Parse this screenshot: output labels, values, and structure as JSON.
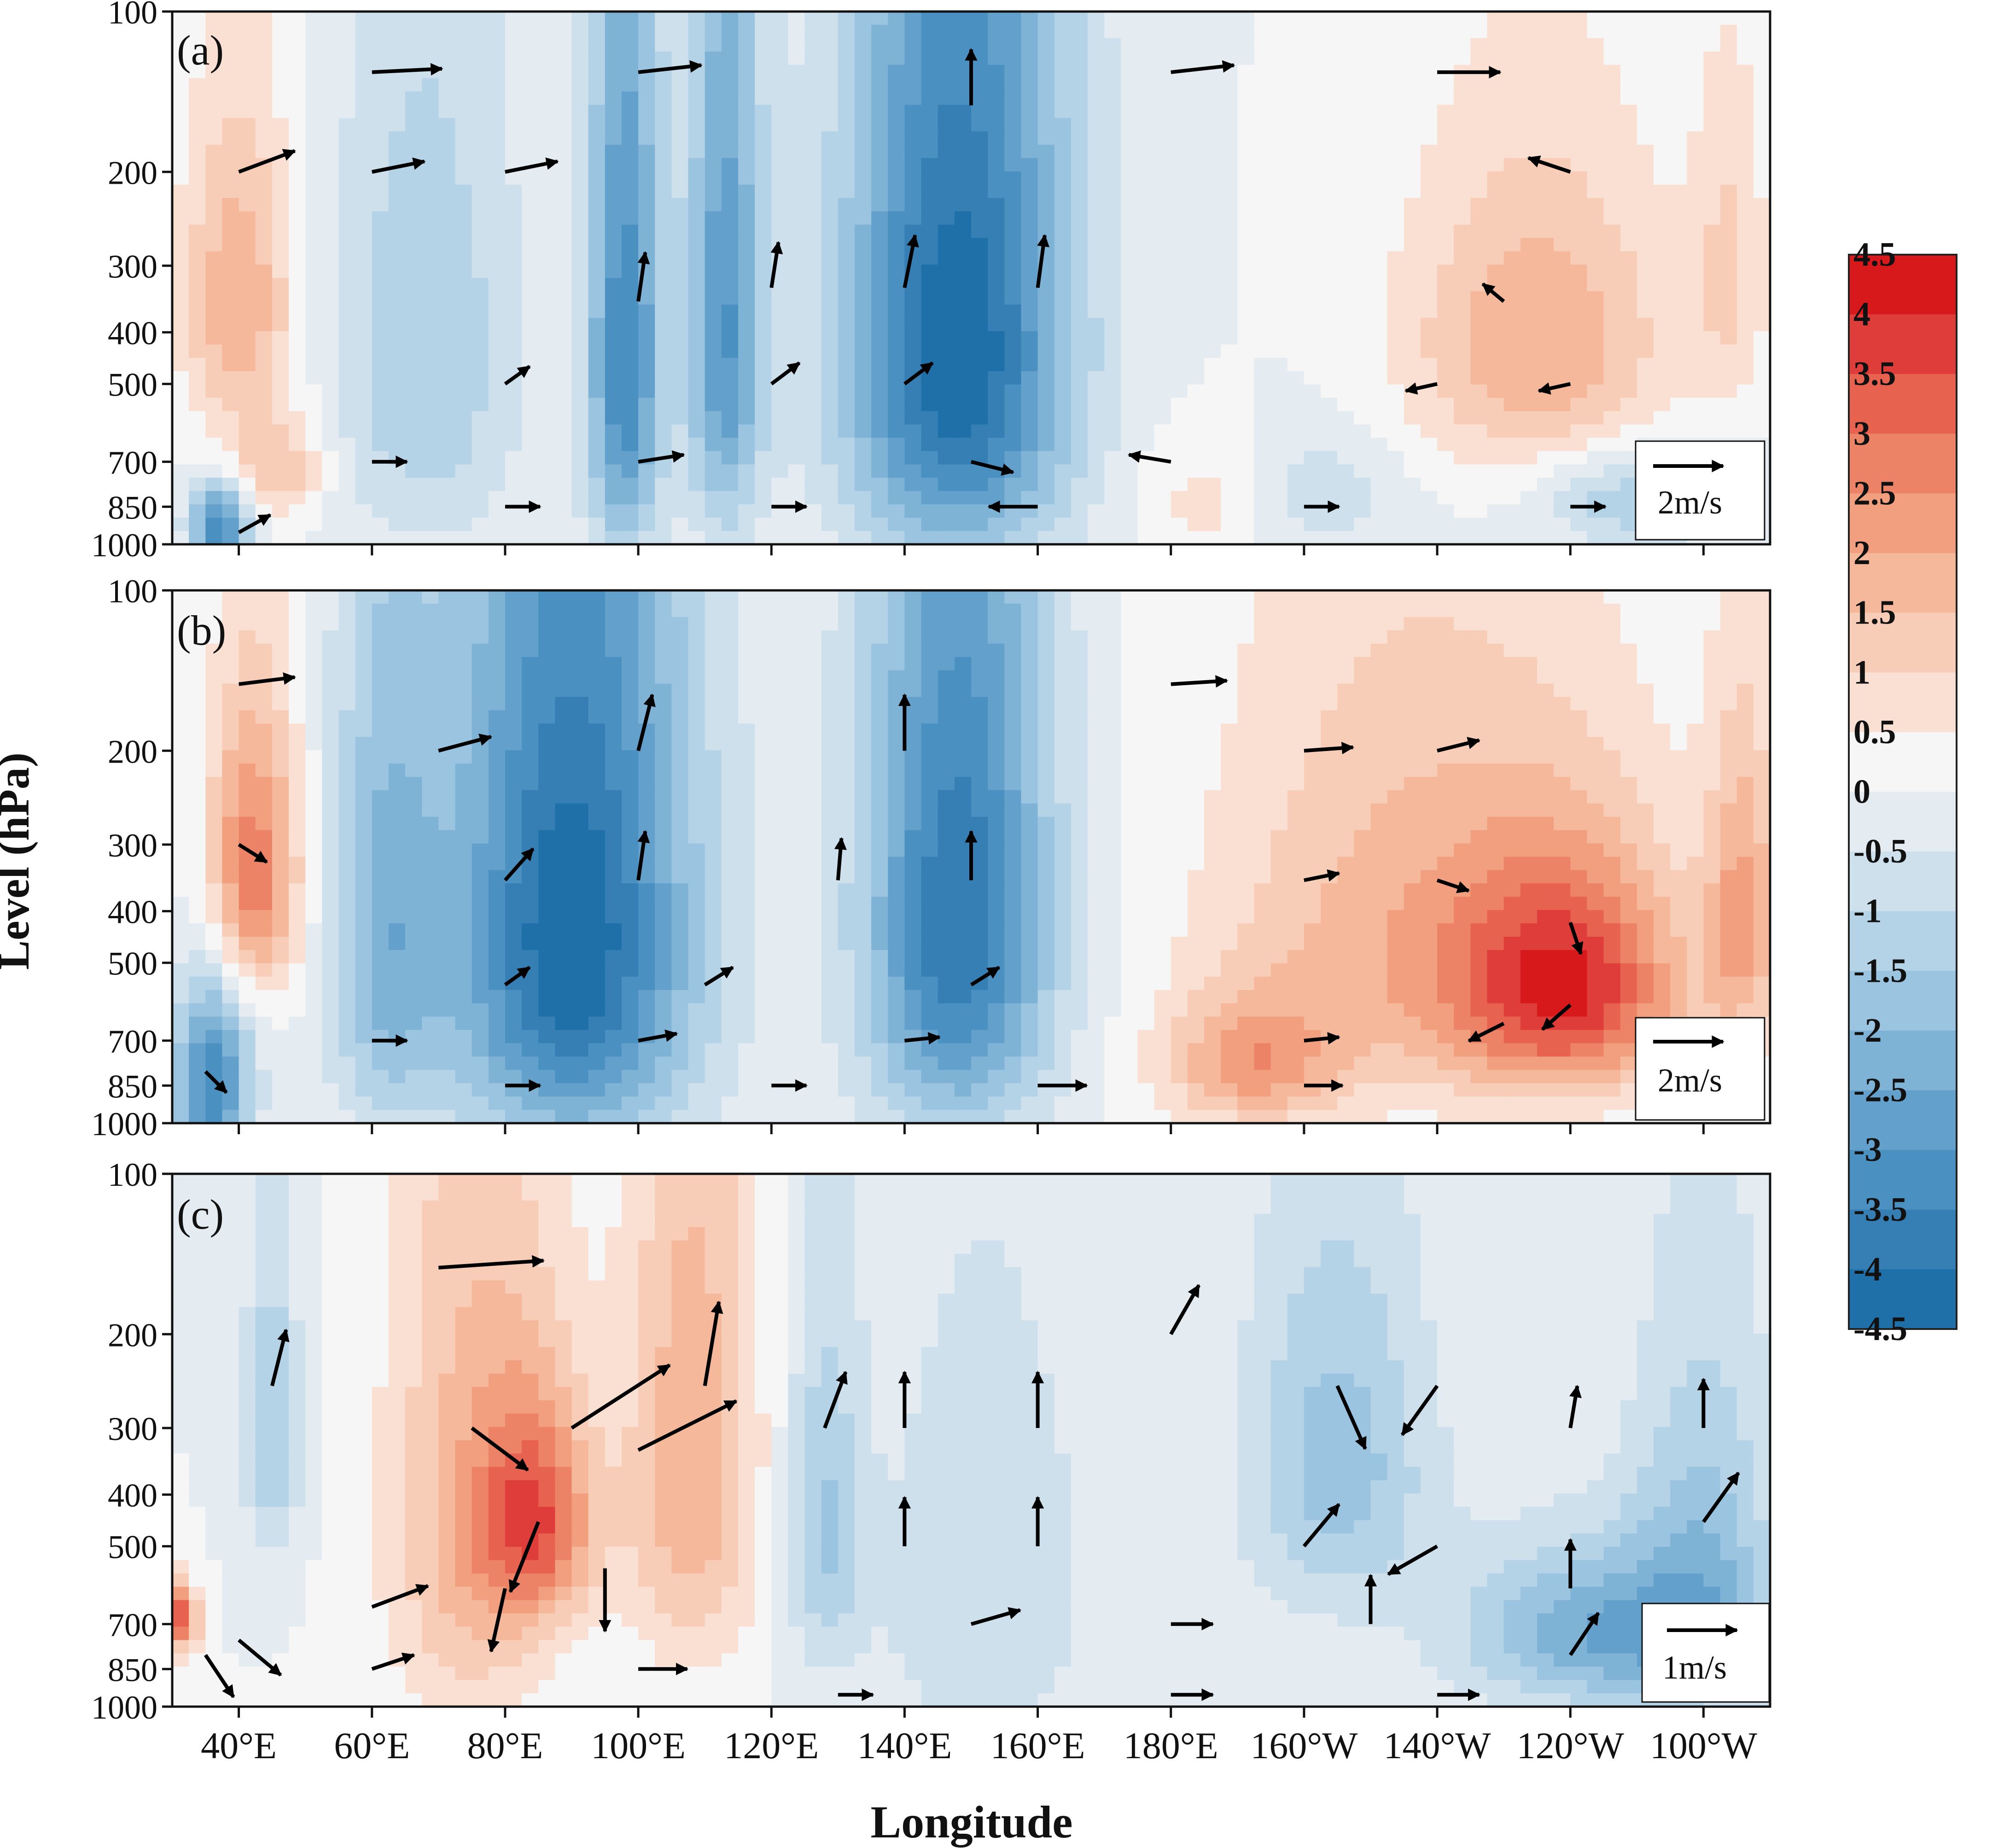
{
  "figure": {
    "ylabel": "Level (hPa)",
    "xlabel": "Longitude"
  },
  "colorbar": {
    "tick_labels": [
      "4.5",
      "4",
      "3.5",
      "3",
      "2.5",
      "2",
      "1.5",
      "1",
      "0.5",
      "0",
      "-0.5",
      "-1",
      "-1.5",
      "-2",
      "-2.5",
      "-3",
      "-3.5",
      "-4",
      "-4.5"
    ],
    "levels": [
      4.5,
      4,
      3.5,
      3,
      2.5,
      2,
      1.5,
      1,
      0.5,
      0,
      -0.5,
      -1,
      -1.5,
      -2,
      -2.5,
      -3,
      -3.5,
      -4,
      -4.5
    ],
    "colors": [
      "#d7191c",
      "#df3d3a",
      "#e76350",
      "#ec8366",
      "#f19f7e",
      "#f5b89a",
      "#f8cdb7",
      "#fae0d2",
      "#f6f6f6",
      "#e4ecf1",
      "#cde0ec",
      "#b5d3e6",
      "#9ac4df",
      "#7fb3d6",
      "#63a1cc",
      "#4a90c1",
      "#357fb5",
      "#1f6fa9"
    ],
    "cmap_neg_extreme": "#0f69a8",
    "cmap_pos_extreme": "#d61f2a"
  },
  "chart_data": [
    {
      "type": "heatmap",
      "panel_label": "(a)",
      "x_ticks": [
        "40°E",
        "60°E",
        "80°E",
        "100°E",
        "120°E",
        "140°E",
        "160°E",
        "180°E",
        "160°W",
        "140°W",
        "120°W",
        "100°W"
      ],
      "x_tick_values": [
        40,
        60,
        80,
        100,
        120,
        140,
        160,
        180,
        200,
        220,
        240,
        260
      ],
      "xlim": [
        30,
        270
      ],
      "y_ticks": [
        "100",
        "200",
        "300",
        "400",
        "500",
        "700",
        "850",
        "1000"
      ],
      "y_tick_values": [
        100,
        200,
        300,
        400,
        500,
        700,
        850,
        1000
      ],
      "ylim": [
        1000,
        100
      ],
      "vector_scale_label": "2m/s",
      "vector_scale_value": 2,
      "anomaly_centers": [
        {
          "lon": 40,
          "p": 350,
          "value": 2.0,
          "dlon": 6,
          "dp": 170
        },
        {
          "lon": 46,
          "p": 720,
          "value": 1.5,
          "dlon": 5,
          "dp": 110
        },
        {
          "lon": 37,
          "p": 920,
          "value": -3.5,
          "dlon": 3,
          "dp": 110
        },
        {
          "lon": 68,
          "p": 450,
          "value": -1.5,
          "dlon": 10,
          "dp": 350
        },
        {
          "lon": 98,
          "p": 450,
          "value": -3.5,
          "dlon": 4,
          "dp": 380
        },
        {
          "lon": 113,
          "p": 400,
          "value": -3.0,
          "dlon": 4,
          "dp": 350
        },
        {
          "lon": 148,
          "p": 430,
          "value": -4.5,
          "dlon": 12,
          "dp": 400
        },
        {
          "lon": 200,
          "p": 800,
          "value": -1.0,
          "dlon": 10,
          "dp": 150
        },
        {
          "lon": 235,
          "p": 420,
          "value": 2.0,
          "dlon": 14,
          "dp": 200
        },
        {
          "lon": 187,
          "p": 820,
          "value": 1.0,
          "dlon": 8,
          "dp": 150
        },
        {
          "lon": 264,
          "p": 300,
          "value": 1.0,
          "dlon": 4,
          "dp": 150
        },
        {
          "lon": 250,
          "p": 820,
          "value": -1.5,
          "dlon": 10,
          "dp": 120
        }
      ],
      "vectors": [
        {
          "lon": 40,
          "p": 200,
          "u": 1.6,
          "v": -0.6
        },
        {
          "lon": 60,
          "p": 200,
          "u": 1.5,
          "v": -0.3
        },
        {
          "lon": 80,
          "p": 200,
          "u": 1.5,
          "v": -0.3
        },
        {
          "lon": 60,
          "p": 130,
          "u": 2.0,
          "v": -0.1
        },
        {
          "lon": 100,
          "p": 130,
          "u": 1.8,
          "v": -0.2
        },
        {
          "lon": 150,
          "p": 150,
          "u": 0.0,
          "v": -1.6
        },
        {
          "lon": 180,
          "p": 130,
          "u": 1.8,
          "v": -0.2
        },
        {
          "lon": 220,
          "p": 130,
          "u": 1.8,
          "v": 0.0
        },
        {
          "lon": 240,
          "p": 200,
          "u": -1.2,
          "v": -0.4
        },
        {
          "lon": 100,
          "p": 350,
          "u": 0.2,
          "v": -1.4
        },
        {
          "lon": 120,
          "p": 330,
          "u": 0.2,
          "v": -1.3
        },
        {
          "lon": 140,
          "p": 330,
          "u": 0.3,
          "v": -1.5
        },
        {
          "lon": 160,
          "p": 330,
          "u": 0.2,
          "v": -1.5
        },
        {
          "lon": 80,
          "p": 500,
          "u": 0.7,
          "v": -0.5
        },
        {
          "lon": 120,
          "p": 500,
          "u": 0.8,
          "v": -0.6
        },
        {
          "lon": 140,
          "p": 500,
          "u": 0.8,
          "v": -0.6
        },
        {
          "lon": 60,
          "p": 700,
          "u": 1.0,
          "v": 0.0
        },
        {
          "lon": 100,
          "p": 700,
          "u": 1.3,
          "v": -0.2
        },
        {
          "lon": 150,
          "p": 700,
          "u": 1.2,
          "v": 0.3
        },
        {
          "lon": 180,
          "p": 700,
          "u": -1.2,
          "v": -0.2
        },
        {
          "lon": 220,
          "p": 500,
          "u": -0.9,
          "v": 0.2
        },
        {
          "lon": 240,
          "p": 500,
          "u": -0.9,
          "v": 0.2
        },
        {
          "lon": 230,
          "p": 350,
          "u": -0.6,
          "v": -0.5
        },
        {
          "lon": 80,
          "p": 850,
          "u": 1.0,
          "v": 0.0
        },
        {
          "lon": 120,
          "p": 850,
          "u": 1.0,
          "v": 0.0
        },
        {
          "lon": 160,
          "p": 850,
          "u": -1.4,
          "v": 0.0
        },
        {
          "lon": 200,
          "p": 850,
          "u": 1.0,
          "v": 0.0
        },
        {
          "lon": 240,
          "p": 850,
          "u": 1.0,
          "v": 0.0
        },
        {
          "lon": 40,
          "p": 950,
          "u": 0.9,
          "v": -0.5
        },
        {
          "lon": 260,
          "p": 700,
          "u": 0.7,
          "v": -0.4
        }
      ]
    },
    {
      "type": "heatmap",
      "panel_label": "(b)",
      "x_ticks": [
        "40°E",
        "60°E",
        "80°E",
        "100°E",
        "120°E",
        "140°E",
        "160°E",
        "180°E",
        "160°W",
        "140°W",
        "120°W",
        "100°W"
      ],
      "x_tick_values": [
        40,
        60,
        80,
        100,
        120,
        140,
        160,
        180,
        200,
        220,
        240,
        260
      ],
      "xlim": [
        30,
        270
      ],
      "y_ticks": [
        "100",
        "200",
        "300",
        "400",
        "500",
        "700",
        "850",
        "1000"
      ],
      "y_tick_values": [
        100,
        200,
        300,
        400,
        500,
        700,
        850,
        1000
      ],
      "ylim": [
        1000,
        100
      ],
      "vector_scale_label": "2m/s",
      "vector_scale_value": 2,
      "anomaly_centers": [
        {
          "lon": 42,
          "p": 340,
          "value": 3.0,
          "dlon": 5,
          "dp": 150
        },
        {
          "lon": 36,
          "p": 850,
          "value": -3.5,
          "dlon": 4,
          "dp": 250
        },
        {
          "lon": 62,
          "p": 450,
          "value": -2.0,
          "dlon": 6,
          "dp": 350
        },
        {
          "lon": 90,
          "p": 450,
          "value": -4.5,
          "dlon": 13,
          "dp": 420
        },
        {
          "lon": 148,
          "p": 420,
          "value": -4.0,
          "dlon": 10,
          "dp": 380
        },
        {
          "lon": 240,
          "p": 560,
          "value": 3.5,
          "dlon": 12,
          "dp": 200
        },
        {
          "lon": 215,
          "p": 450,
          "value": 1.8,
          "dlon": 20,
          "dp": 300
        },
        {
          "lon": 192,
          "p": 780,
          "value": 2.0,
          "dlon": 9,
          "dp": 150
        },
        {
          "lon": 266,
          "p": 400,
          "value": 2.0,
          "dlon": 4,
          "dp": 200
        }
      ],
      "vectors": [
        {
          "lon": 40,
          "p": 150,
          "u": 1.6,
          "v": -0.2
        },
        {
          "lon": 70,
          "p": 200,
          "u": 1.5,
          "v": -0.4
        },
        {
          "lon": 100,
          "p": 200,
          "u": 0.4,
          "v": -1.6
        },
        {
          "lon": 140,
          "p": 200,
          "u": 0.0,
          "v": -1.6
        },
        {
          "lon": 180,
          "p": 150,
          "u": 1.6,
          "v": -0.1
        },
        {
          "lon": 200,
          "p": 200,
          "u": 1.4,
          "v": -0.1
        },
        {
          "lon": 220,
          "p": 200,
          "u": 1.2,
          "v": -0.3
        },
        {
          "lon": 80,
          "p": 350,
          "u": 0.8,
          "v": -0.9
        },
        {
          "lon": 100,
          "p": 350,
          "u": 0.2,
          "v": -1.4
        },
        {
          "lon": 130,
          "p": 350,
          "u": 0.1,
          "v": -1.2
        },
        {
          "lon": 150,
          "p": 350,
          "u": 0.0,
          "v": -1.4
        },
        {
          "lon": 200,
          "p": 350,
          "u": 1.0,
          "v": -0.2
        },
        {
          "lon": 220,
          "p": 350,
          "u": 0.9,
          "v": 0.3
        },
        {
          "lon": 240,
          "p": 420,
          "u": 0.3,
          "v": 0.9
        },
        {
          "lon": 240,
          "p": 600,
          "u": -0.8,
          "v": 0.7
        },
        {
          "lon": 230,
          "p": 650,
          "u": -1.0,
          "v": 0.5
        },
        {
          "lon": 80,
          "p": 550,
          "u": 0.7,
          "v": -0.5
        },
        {
          "lon": 110,
          "p": 550,
          "u": 0.8,
          "v": -0.5
        },
        {
          "lon": 150,
          "p": 550,
          "u": 0.8,
          "v": -0.5
        },
        {
          "lon": 60,
          "p": 700,
          "u": 1.0,
          "v": 0.0
        },
        {
          "lon": 100,
          "p": 700,
          "u": 1.1,
          "v": -0.2
        },
        {
          "lon": 140,
          "p": 700,
          "u": 1.0,
          "v": -0.1
        },
        {
          "lon": 200,
          "p": 700,
          "u": 1.0,
          "v": -0.1
        },
        {
          "lon": 80,
          "p": 850,
          "u": 1.0,
          "v": 0.0
        },
        {
          "lon": 120,
          "p": 850,
          "u": 1.0,
          "v": 0.0
        },
        {
          "lon": 160,
          "p": 850,
          "u": 1.4,
          "v": 0.0
        },
        {
          "lon": 200,
          "p": 850,
          "u": 1.1,
          "v": 0.0
        },
        {
          "lon": 40,
          "p": 300,
          "u": 0.8,
          "v": 0.5
        },
        {
          "lon": 35,
          "p": 800,
          "u": 0.6,
          "v": 0.6
        },
        {
          "lon": 255,
          "p": 850,
          "u": -0.4,
          "v": 0.5
        }
      ]
    },
    {
      "type": "heatmap",
      "panel_label": "(c)",
      "x_ticks": [
        "40°E",
        "60°E",
        "80°E",
        "100°E",
        "120°E",
        "140°E",
        "160°E",
        "180°E",
        "160°W",
        "140°W",
        "120°W",
        "100°W"
      ],
      "x_tick_values": [
        40,
        60,
        80,
        100,
        120,
        140,
        160,
        180,
        200,
        220,
        240,
        260
      ],
      "xlim": [
        30,
        270
      ],
      "y_ticks": [
        "100",
        "200",
        "300",
        "400",
        "500",
        "700",
        "850",
        "1000"
      ],
      "y_tick_values": [
        100,
        200,
        300,
        400,
        500,
        700,
        850,
        1000
      ],
      "ylim": [
        1000,
        100
      ],
      "vector_scale_label": "1m/s",
      "vector_scale_value": 1,
      "anomaly_centers": [
        {
          "lon": 31,
          "p": 680,
          "value": 3.5,
          "dlon": 2,
          "dp": 70
        },
        {
          "lon": 45,
          "p": 300,
          "value": -1.5,
          "dlon": 3,
          "dp": 150
        },
        {
          "lon": 75,
          "p": 450,
          "value": 1.8,
          "dlon": 9,
          "dp": 400
        },
        {
          "lon": 85,
          "p": 450,
          "value": 2.8,
          "dlon": 6,
          "dp": 150
        },
        {
          "lon": 108,
          "p": 350,
          "value": 2.0,
          "dlon": 7,
          "dp": 300
        },
        {
          "lon": 128,
          "p": 450,
          "value": -1.5,
          "dlon": 4,
          "dp": 250
        },
        {
          "lon": 152,
          "p": 600,
          "value": -1.0,
          "dlon": 12,
          "dp": 400
        },
        {
          "lon": 205,
          "p": 350,
          "value": -1.8,
          "dlon": 10,
          "dp": 200
        },
        {
          "lon": 245,
          "p": 730,
          "value": -2.5,
          "dlon": 15,
          "dp": 180
        },
        {
          "lon": 260,
          "p": 500,
          "value": -1.5,
          "dlon": 8,
          "dp": 300
        }
      ],
      "vectors": [
        {
          "lon": 70,
          "p": 150,
          "u": 1.5,
          "v": -0.1
        },
        {
          "lon": 90,
          "p": 300,
          "u": 1.4,
          "v": -0.9
        },
        {
          "lon": 100,
          "p": 330,
          "u": 1.4,
          "v": -0.7
        },
        {
          "lon": 75,
          "p": 300,
          "u": 0.8,
          "v": 0.6
        },
        {
          "lon": 110,
          "p": 250,
          "u": 0.2,
          "v": -1.2
        },
        {
          "lon": 85,
          "p": 450,
          "u": -0.4,
          "v": 1.0
        },
        {
          "lon": 95,
          "p": 550,
          "u": 0.0,
          "v": 0.9
        },
        {
          "lon": 80,
          "p": 600,
          "u": -0.2,
          "v": 0.9
        },
        {
          "lon": 60,
          "p": 650,
          "u": 0.8,
          "v": -0.3
        },
        {
          "lon": 45,
          "p": 250,
          "u": 0.2,
          "v": -0.8
        },
        {
          "lon": 128,
          "p": 300,
          "u": 0.3,
          "v": -0.8
        },
        {
          "lon": 140,
          "p": 300,
          "u": 0.0,
          "v": -0.8
        },
        {
          "lon": 160,
          "p": 300,
          "u": 0.0,
          "v": -0.8
        },
        {
          "lon": 180,
          "p": 200,
          "u": 0.4,
          "v": -0.7
        },
        {
          "lon": 205,
          "p": 250,
          "u": 0.4,
          "v": 0.9
        },
        {
          "lon": 220,
          "p": 250,
          "u": -0.5,
          "v": 0.7
        },
        {
          "lon": 240,
          "p": 300,
          "u": 0.1,
          "v": -0.6
        },
        {
          "lon": 260,
          "p": 300,
          "u": 0.0,
          "v": -0.7
        },
        {
          "lon": 140,
          "p": 500,
          "u": 0.0,
          "v": -0.7
        },
        {
          "lon": 160,
          "p": 500,
          "u": 0.0,
          "v": -0.7
        },
        {
          "lon": 200,
          "p": 500,
          "u": 0.5,
          "v": -0.6
        },
        {
          "lon": 220,
          "p": 500,
          "u": -0.7,
          "v": 0.4
        },
        {
          "lon": 240,
          "p": 600,
          "u": 0.0,
          "v": -0.7
        },
        {
          "lon": 260,
          "p": 450,
          "u": 0.5,
          "v": -0.7
        },
        {
          "lon": 150,
          "p": 700,
          "u": 0.7,
          "v": -0.2
        },
        {
          "lon": 180,
          "p": 700,
          "u": 0.6,
          "v": 0.0
        },
        {
          "lon": 210,
          "p": 700,
          "u": 0.0,
          "v": -0.7
        },
        {
          "lon": 240,
          "p": 800,
          "u": 0.4,
          "v": -0.6
        },
        {
          "lon": 60,
          "p": 850,
          "u": 0.6,
          "v": -0.2
        },
        {
          "lon": 100,
          "p": 850,
          "u": 0.7,
          "v": 0.0
        },
        {
          "lon": 130,
          "p": 950,
          "u": 0.5,
          "v": 0.0
        },
        {
          "lon": 180,
          "p": 950,
          "u": 0.6,
          "v": 0.0
        },
        {
          "lon": 220,
          "p": 950,
          "u": 0.6,
          "v": 0.0
        },
        {
          "lon": 35,
          "p": 800,
          "u": 0.4,
          "v": 0.6
        },
        {
          "lon": 40,
          "p": 750,
          "u": 0.6,
          "v": 0.5
        }
      ]
    }
  ]
}
